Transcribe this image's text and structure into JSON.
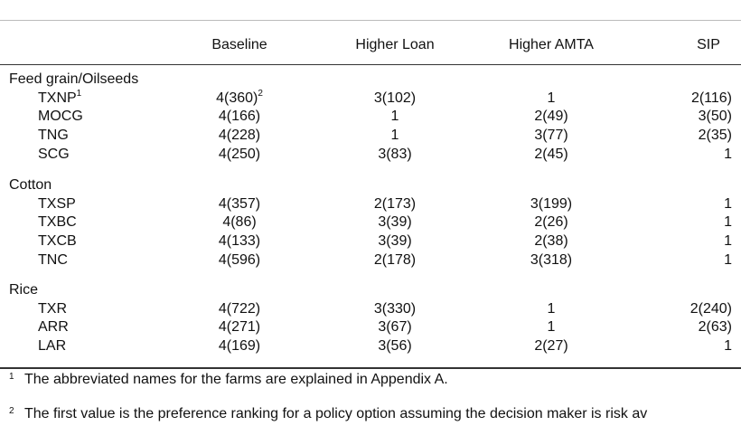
{
  "table": {
    "columns": [
      "Baseline",
      "Higher Loan",
      "Higher AMTA",
      "SIP"
    ],
    "groups": [
      {
        "label": "Feed grain/Oilseeds",
        "rows": [
          {
            "name": "TXNP",
            "sup": "1",
            "cells": [
              {
                "text": "4(360)",
                "sup": "2"
              },
              "3(102)",
              "1",
              "2(116)"
            ]
          },
          {
            "name": "MOCG",
            "cells": [
              "4(166)",
              "1",
              "2(49)",
              "3(50)"
            ]
          },
          {
            "name": "TNG",
            "cells": [
              "4(228)",
              "1",
              "3(77)",
              "2(35)"
            ]
          },
          {
            "name": "SCG",
            "cells": [
              "4(250)",
              "3(83)",
              "2(45)",
              "1"
            ]
          }
        ]
      },
      {
        "label": "Cotton",
        "rows": [
          {
            "name": "TXSP",
            "cells": [
              "4(357)",
              "2(173)",
              "3(199)",
              "1"
            ]
          },
          {
            "name": "TXBC",
            "cells": [
              "4(86)",
              "3(39)",
              "2(26)",
              "1"
            ]
          },
          {
            "name": "TXCB",
            "cells": [
              "4(133)",
              "3(39)",
              "2(38)",
              "1"
            ]
          },
          {
            "name": "TNC",
            "cells": [
              "4(596)",
              "2(178)",
              "3(318)",
              "1"
            ]
          }
        ]
      },
      {
        "label": "Rice",
        "rows": [
          {
            "name": "TXR",
            "cells": [
              "4(722)",
              "3(330)",
              "1",
              "2(240)"
            ]
          },
          {
            "name": "ARR",
            "cells": [
              "4(271)",
              "3(67)",
              "1",
              "2(63)"
            ]
          },
          {
            "name": "LAR",
            "cells": [
              "4(169)",
              "3(56)",
              "2(27)",
              "1"
            ]
          }
        ]
      }
    ]
  },
  "footnotes": [
    {
      "marker": "1",
      "text": "The abbreviated names for the farms are explained in Appendix A."
    },
    {
      "marker": "2",
      "text": "The first value is the preference ranking for a policy option assuming the decision maker is risk av"
    }
  ]
}
